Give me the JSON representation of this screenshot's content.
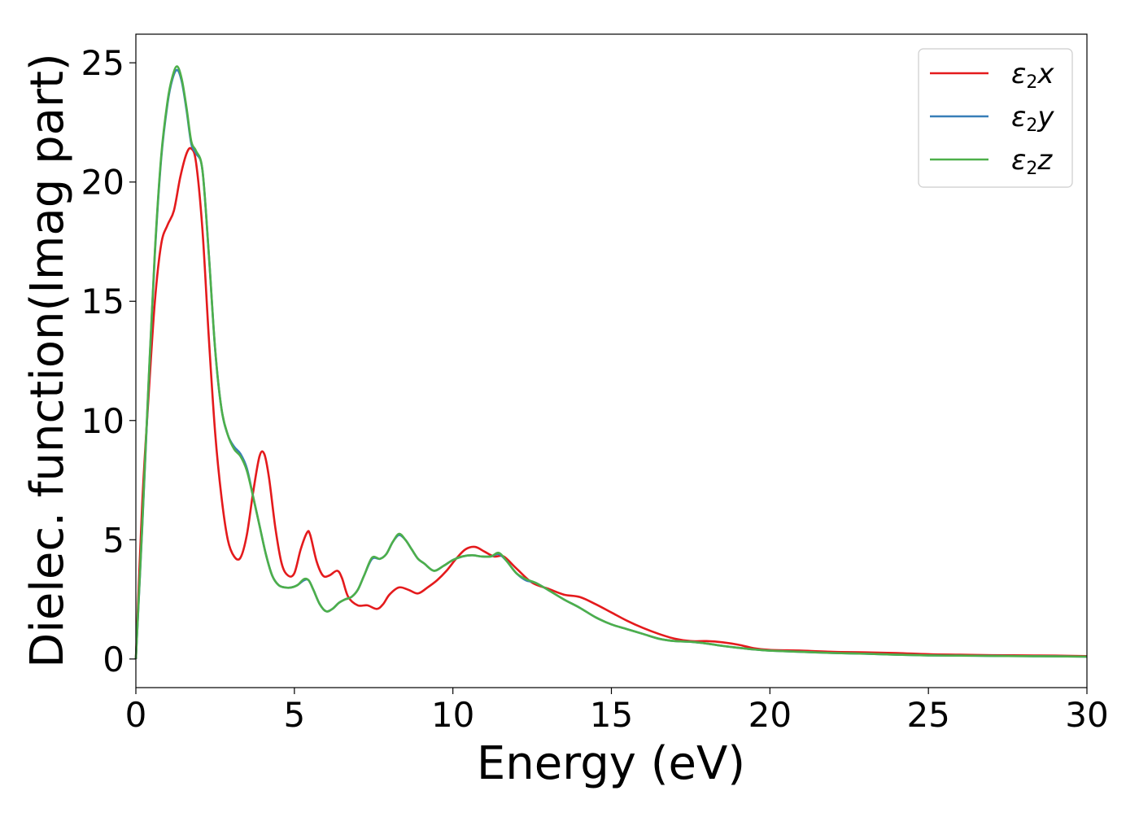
{
  "chart_data": {
    "type": "line",
    "title": "",
    "xlabel": "Energy (eV)",
    "ylabel": "Dielec. function(Imag part)",
    "xlim": [
      0,
      30
    ],
    "ylim": [
      -1.2,
      26.2
    ],
    "xticks": [
      0,
      5,
      10,
      15,
      20,
      25,
      30
    ],
    "yticks": [
      0,
      5,
      10,
      15,
      20,
      25
    ],
    "grid": false,
    "legend_position": "top-right",
    "legend_entries": [
      {
        "label_main": "ε",
        "label_sub": "2",
        "label_var": "x",
        "color": "#e41a1c"
      },
      {
        "label_main": "ε",
        "label_sub": "2",
        "label_var": "y",
        "color": "#377eb8"
      },
      {
        "label_main": "ε",
        "label_sub": "2",
        "label_var": "z",
        "color": "#4daf4a"
      }
    ],
    "series": [
      {
        "name": "ε2x",
        "color": "#e41a1c",
        "x": [
          0,
          0.2,
          0.4,
          0.6,
          0.8,
          1.0,
          1.2,
          1.4,
          1.6,
          1.75,
          1.9,
          2.1,
          2.3,
          2.5,
          2.7,
          2.9,
          3.1,
          3.3,
          3.5,
          3.7,
          3.9,
          4.05,
          4.2,
          4.4,
          4.6,
          4.8,
          5.0,
          5.2,
          5.4,
          5.5,
          5.7,
          5.9,
          6.1,
          6.35,
          6.5,
          6.7,
          7.0,
          7.3,
          7.6,
          7.8,
          8.0,
          8.3,
          8.6,
          8.9,
          9.2,
          9.5,
          9.8,
          10.1,
          10.4,
          10.7,
          11.0,
          11.3,
          11.6,
          12.0,
          12.5,
          13.0,
          13.5,
          14.0,
          14.5,
          15.0,
          15.5,
          16.0,
          16.5,
          17.0,
          17.5,
          18.0,
          18.5,
          19.0,
          19.5,
          20.0,
          21.0,
          22.0,
          23.0,
          24.0,
          25.0,
          26.0,
          27.0,
          28.0,
          29.0,
          30.0
        ],
        "values": [
          0,
          6.5,
          11,
          15,
          17.4,
          18.2,
          18.8,
          20.2,
          21.2,
          21.4,
          20.8,
          18.0,
          13.5,
          9.5,
          6.8,
          5.0,
          4.3,
          4.25,
          5.2,
          7.0,
          8.5,
          8.6,
          7.6,
          5.5,
          4.0,
          3.5,
          3.6,
          4.6,
          5.3,
          5.2,
          4.1,
          3.5,
          3.5,
          3.7,
          3.4,
          2.6,
          2.25,
          2.25,
          2.1,
          2.3,
          2.7,
          3.0,
          2.9,
          2.75,
          3.0,
          3.3,
          3.7,
          4.2,
          4.6,
          4.7,
          4.5,
          4.3,
          4.3,
          3.8,
          3.2,
          2.95,
          2.7,
          2.6,
          2.3,
          1.95,
          1.6,
          1.3,
          1.05,
          0.85,
          0.75,
          0.75,
          0.7,
          0.6,
          0.45,
          0.38,
          0.35,
          0.3,
          0.28,
          0.25,
          0.2,
          0.18,
          0.16,
          0.15,
          0.14,
          0.12
        ]
      },
      {
        "name": "ε2y",
        "color": "#377eb8",
        "x": [
          0,
          0.2,
          0.4,
          0.6,
          0.8,
          1.0,
          1.15,
          1.3,
          1.45,
          1.6,
          1.75,
          1.9,
          2.1,
          2.3,
          2.5,
          2.7,
          2.9,
          3.1,
          3.3,
          3.5,
          3.7,
          3.9,
          4.1,
          4.3,
          4.5,
          4.7,
          4.9,
          5.1,
          5.3,
          5.45,
          5.6,
          5.8,
          6.0,
          6.2,
          6.4,
          6.6,
          6.8,
          7.0,
          7.2,
          7.45,
          7.7,
          7.9,
          8.1,
          8.3,
          8.5,
          8.7,
          8.9,
          9.1,
          9.4,
          9.7,
          10.0,
          10.3,
          10.6,
          10.9,
          11.2,
          11.45,
          11.7,
          12.0,
          12.3,
          12.6,
          13.0,
          13.5,
          14.0,
          14.5,
          15.0,
          15.5,
          16.0,
          16.5,
          17.0,
          17.5,
          18.0,
          18.5,
          19.0,
          19.5,
          20.0,
          21.0,
          22.0,
          23.0,
          24.0,
          25.0,
          26.0,
          27.0,
          28.0,
          29.0,
          30.0
        ],
        "values": [
          0,
          5.5,
          11.5,
          17,
          21,
          23.3,
          24.3,
          24.7,
          24.2,
          23.0,
          21.6,
          21.2,
          20.5,
          17.0,
          13.0,
          10.5,
          9.4,
          8.9,
          8.6,
          8.0,
          6.8,
          5.6,
          4.4,
          3.5,
          3.1,
          3.0,
          3.0,
          3.1,
          3.3,
          3.3,
          2.9,
          2.3,
          2.0,
          2.1,
          2.35,
          2.5,
          2.6,
          2.9,
          3.5,
          4.2,
          4.2,
          4.4,
          4.9,
          5.2,
          5.0,
          4.6,
          4.2,
          4.0,
          3.7,
          3.9,
          4.15,
          4.3,
          4.35,
          4.3,
          4.3,
          4.4,
          4.1,
          3.6,
          3.3,
          3.2,
          2.9,
          2.5,
          2.15,
          1.75,
          1.45,
          1.25,
          1.05,
          0.85,
          0.75,
          0.72,
          0.65,
          0.55,
          0.47,
          0.4,
          0.35,
          0.3,
          0.25,
          0.22,
          0.18,
          0.15,
          0.14,
          0.13,
          0.12,
          0.11,
          0.1
        ]
      },
      {
        "name": "ε2z",
        "color": "#4daf4a",
        "x": [
          0,
          0.2,
          0.4,
          0.6,
          0.8,
          1.0,
          1.15,
          1.3,
          1.45,
          1.6,
          1.75,
          1.9,
          2.1,
          2.3,
          2.5,
          2.7,
          2.9,
          3.1,
          3.3,
          3.5,
          3.7,
          3.9,
          4.1,
          4.3,
          4.5,
          4.7,
          4.9,
          5.1,
          5.3,
          5.45,
          5.6,
          5.8,
          6.0,
          6.2,
          6.4,
          6.6,
          6.8,
          7.0,
          7.2,
          7.45,
          7.7,
          7.9,
          8.1,
          8.3,
          8.5,
          8.7,
          8.9,
          9.1,
          9.4,
          9.7,
          10.0,
          10.3,
          10.6,
          10.9,
          11.2,
          11.45,
          11.7,
          12.0,
          12.3,
          12.6,
          13.0,
          13.5,
          14.0,
          14.5,
          15.0,
          15.5,
          16.0,
          16.5,
          17.0,
          17.5,
          18.0,
          18.5,
          19.0,
          19.5,
          20.0,
          21.0,
          22.0,
          23.0,
          24.0,
          25.0,
          26.0,
          27.0,
          28.0,
          29.0,
          30.0
        ],
        "values": [
          0,
          5.6,
          11.6,
          17.1,
          21.1,
          23.4,
          24.4,
          24.85,
          24.3,
          23.1,
          21.7,
          21.3,
          20.5,
          17.0,
          13.0,
          10.5,
          9.4,
          8.8,
          8.5,
          7.9,
          6.8,
          5.6,
          4.4,
          3.5,
          3.1,
          3.0,
          3.0,
          3.1,
          3.35,
          3.3,
          2.9,
          2.3,
          2.0,
          2.1,
          2.35,
          2.5,
          2.6,
          2.9,
          3.5,
          4.25,
          4.2,
          4.4,
          4.9,
          5.25,
          5.0,
          4.6,
          4.2,
          4.0,
          3.7,
          3.9,
          4.15,
          4.3,
          4.35,
          4.3,
          4.3,
          4.45,
          4.1,
          3.6,
          3.35,
          3.2,
          2.9,
          2.5,
          2.15,
          1.75,
          1.45,
          1.25,
          1.05,
          0.85,
          0.75,
          0.72,
          0.65,
          0.55,
          0.47,
          0.4,
          0.35,
          0.3,
          0.25,
          0.22,
          0.18,
          0.15,
          0.14,
          0.13,
          0.12,
          0.11,
          0.1
        ]
      }
    ]
  }
}
